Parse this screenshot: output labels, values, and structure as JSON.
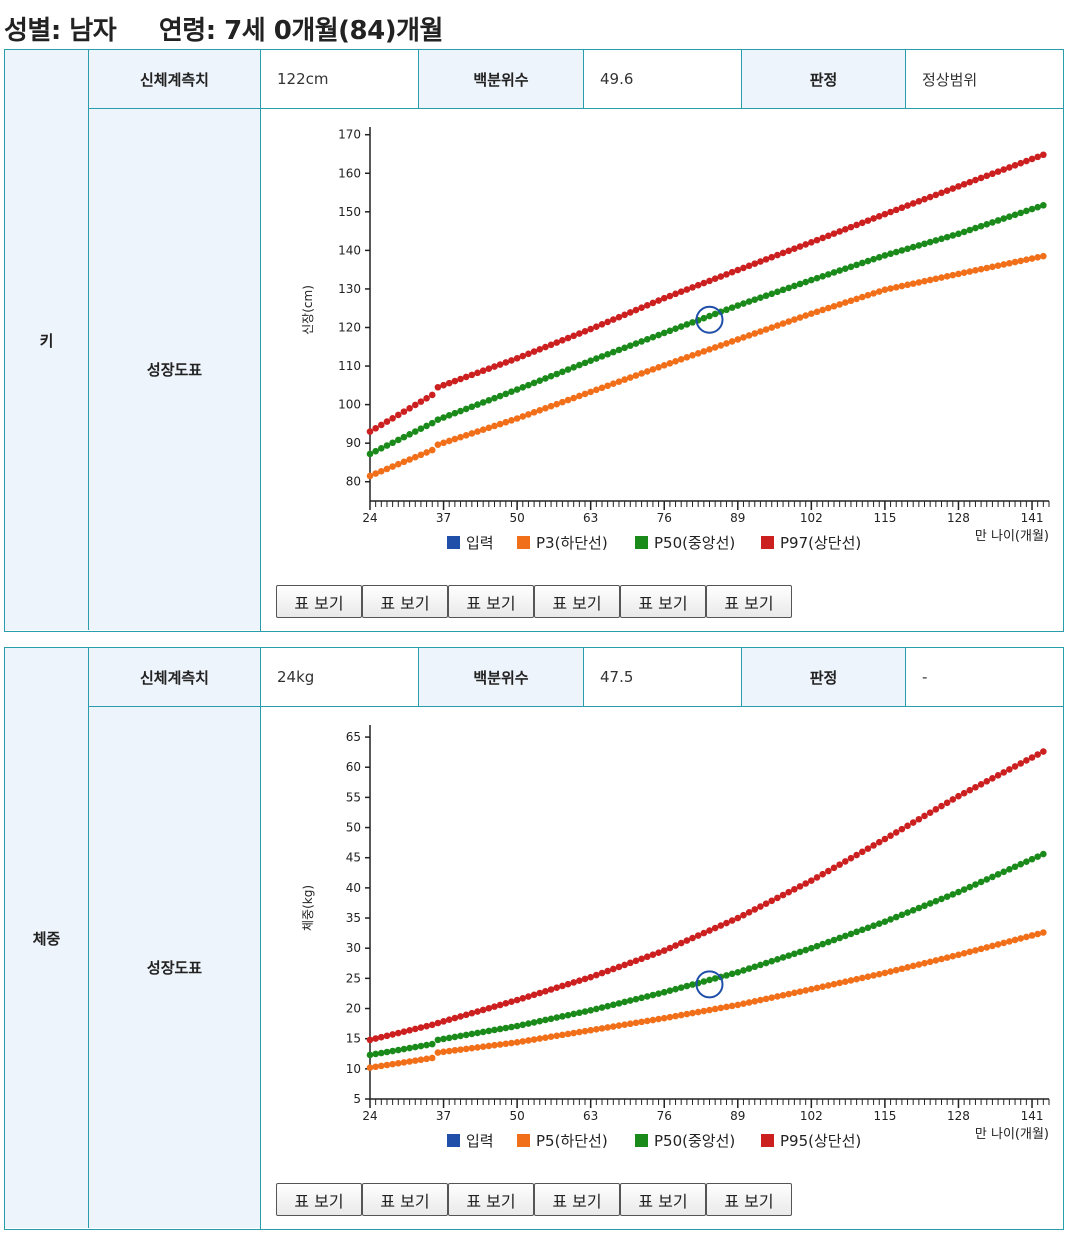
{
  "header": {
    "title": "성별: 남자     연령: 7세 0개월(84)개월"
  },
  "sections": [
    {
      "row_label": "키",
      "measure_label": "신체계측치",
      "measure_value": "122cm",
      "percentile_label": "백분위수",
      "percentile_value": "49.6",
      "judgment_label": "판정",
      "judgment_value": "정상범위",
      "chart_label": "성장도표",
      "button_label": "표 보기",
      "buttons": [
        "표 보기",
        "표 보기",
        "표 보기",
        "표 보기",
        "표 보기",
        "표 보기"
      ]
    },
    {
      "row_label": "체중",
      "measure_label": "신체계측치",
      "measure_value": "24kg",
      "percentile_label": "백분위수",
      "percentile_value": "47.5",
      "judgment_label": "판정",
      "judgment_value": "-",
      "chart_label": "성장도표",
      "buttons": [
        "표 보기",
        "표 보기",
        "표 보기",
        "표 보기",
        "표 보기",
        "표 보기"
      ]
    }
  ],
  "chart_data": [
    {
      "type": "scatter",
      "ylabel": "신장(cm)",
      "xlabel": "만 나이(개월)",
      "xlim": [
        24,
        144
      ],
      "ylim": [
        75,
        172
      ],
      "xticks": [
        24,
        37,
        50,
        63,
        76,
        89,
        102,
        115,
        128,
        141
      ],
      "yticks": [
        80,
        90,
        100,
        110,
        120,
        130,
        140,
        150,
        160,
        170
      ],
      "legend": [
        "입력",
        "P3(하단선)",
        "P50(중앙선)",
        "P97(상단선)"
      ],
      "colors": {
        "input": "#1f4fa8",
        "low": "#f26f1a",
        "mid": "#1a8a1a",
        "high": "#cc1f1f"
      },
      "input_point": {
        "x": 84,
        "y": 122
      },
      "series": [
        {
          "name": "P3(하단선)",
          "color": "#f26f1a",
          "anchors": [
            [
              24,
              81.5
            ],
            [
              35,
              88.2
            ],
            [
              36,
              89.6
            ],
            [
              50,
              96.4
            ],
            [
              63,
              103.3
            ],
            [
              76,
              110.2
            ],
            [
              89,
              116.9
            ],
            [
              102,
              123.6
            ],
            [
              115,
              129.8
            ],
            [
              128,
              133.9
            ],
            [
              143,
              138.5
            ]
          ]
        },
        {
          "name": "P50(중앙선)",
          "color": "#1a8a1a",
          "anchors": [
            [
              24,
              87.2
            ],
            [
              35,
              95.2
            ],
            [
              36,
              96.1
            ],
            [
              50,
              103.9
            ],
            [
              63,
              111.4
            ],
            [
              76,
              118.6
            ],
            [
              89,
              125.7
            ],
            [
              102,
              132.3
            ],
            [
              115,
              138.7
            ],
            [
              128,
              144.3
            ],
            [
              143,
              151.7
            ]
          ]
        },
        {
          "name": "P97(상단선)",
          "color": "#cc1f1f",
          "anchors": [
            [
              24,
              93
            ],
            [
              35,
              102.5
            ],
            [
              36,
              104.5
            ],
            [
              50,
              112
            ],
            [
              63,
              119.6
            ],
            [
              76,
              127.6
            ],
            [
              89,
              134.9
            ],
            [
              102,
              142.1
            ],
            [
              115,
              149.4
            ],
            [
              128,
              156.6
            ],
            [
              143,
              164.8
            ]
          ]
        }
      ]
    },
    {
      "type": "scatter",
      "ylabel": "체중(kg)",
      "xlabel": "만 나이(개월)",
      "xlim": [
        24,
        144
      ],
      "ylim": [
        5,
        67
      ],
      "xticks": [
        24,
        37,
        50,
        63,
        76,
        89,
        102,
        115,
        128,
        141
      ],
      "yticks": [
        5,
        10,
        15,
        20,
        25,
        30,
        35,
        40,
        45,
        50,
        55,
        60,
        65
      ],
      "legend": [
        "입력",
        "P5(하단선)",
        "P50(중앙선)",
        "P95(상단선)"
      ],
      "colors": {
        "input": "#1f4fa8",
        "low": "#f26f1a",
        "mid": "#1a8a1a",
        "high": "#cc1f1f"
      },
      "input_point": {
        "x": 84,
        "y": 24
      },
      "series": [
        {
          "name": "P5(하단선)",
          "color": "#f26f1a",
          "anchors": [
            [
              24,
              10.2
            ],
            [
              35,
              11.8
            ],
            [
              36,
              12.7
            ],
            [
              50,
              14.4
            ],
            [
              63,
              16.4
            ],
            [
              76,
              18.4
            ],
            [
              89,
              20.6
            ],
            [
              102,
              23.2
            ],
            [
              115,
              25.9
            ],
            [
              128,
              28.9
            ],
            [
              143,
              32.6
            ]
          ]
        },
        {
          "name": "P50(중앙선)",
          "color": "#1a8a1a",
          "anchors": [
            [
              24,
              12.3
            ],
            [
              35,
              14.1
            ],
            [
              36,
              14.8
            ],
            [
              50,
              17.1
            ],
            [
              63,
              19.7
            ],
            [
              76,
              22.7
            ],
            [
              89,
              26
            ],
            [
              102,
              30
            ],
            [
              115,
              34.4
            ],
            [
              128,
              39.3
            ],
            [
              143,
              45.6
            ]
          ]
        },
        {
          "name": "P95(상단선)",
          "color": "#cc1f1f",
          "anchors": [
            [
              24,
              14.8
            ],
            [
              35,
              17.3
            ],
            [
              36,
              17.6
            ],
            [
              50,
              21.4
            ],
            [
              63,
              25.2
            ],
            [
              76,
              29.6
            ],
            [
              89,
              35
            ],
            [
              102,
              41.2
            ],
            [
              115,
              48.1
            ],
            [
              128,
              55.2
            ],
            [
              143,
              62.6
            ]
          ]
        }
      ]
    }
  ]
}
